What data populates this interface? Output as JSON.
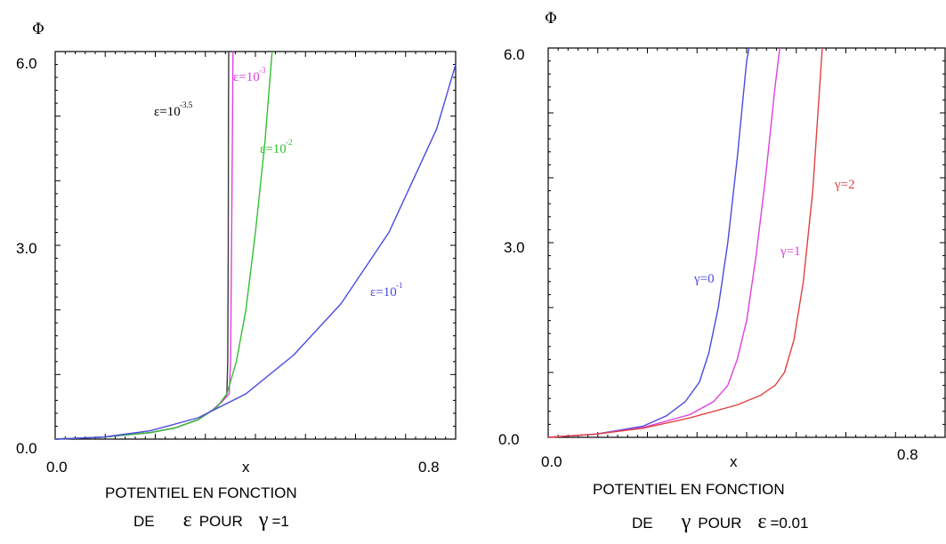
{
  "chart_data": [
    {
      "type": "line",
      "y_axis_title": "Φ",
      "xlabel": "x",
      "xlim": [
        0.0,
        0.84
      ],
      "ylim": [
        0.0,
        6.0
      ],
      "x_tick_labels": [
        "0.0",
        "0.8"
      ],
      "y_tick_labels": [
        "0.0",
        "3.0",
        "6.0"
      ],
      "grid": false,
      "caption_line1": "POTENTIEL EN FONCTION",
      "caption_line2": {
        "prefix": "DE",
        "symbol": "ε",
        "middle": "POUR",
        "symbol2": "γ",
        "suffix": "=1"
      },
      "series": [
        {
          "label": "ε=10",
          "exponent": "-3.5",
          "color": "#3a3a3a",
          "x": [
            0.0,
            0.1,
            0.2,
            0.25,
            0.3,
            0.33,
            0.35,
            0.36,
            0.362,
            0.363,
            0.3635,
            0.364
          ],
          "y": [
            0.0,
            0.03,
            0.1,
            0.17,
            0.3,
            0.45,
            0.58,
            0.7,
            1.2,
            3.0,
            5.0,
            6.0
          ]
        },
        {
          "label": "ε=10",
          "exponent": "-3",
          "color": "#e040e0",
          "x": [
            0.0,
            0.1,
            0.2,
            0.25,
            0.3,
            0.33,
            0.35,
            0.365,
            0.368,
            0.37,
            0.372,
            0.373
          ],
          "y": [
            0.0,
            0.03,
            0.1,
            0.17,
            0.3,
            0.45,
            0.58,
            0.7,
            1.2,
            3.0,
            5.0,
            6.0
          ]
        },
        {
          "label": "ε=10",
          "exponent": "-2",
          "color": "#30c030",
          "x": [
            0.0,
            0.1,
            0.2,
            0.25,
            0.3,
            0.34,
            0.36,
            0.38,
            0.4,
            0.42,
            0.44,
            0.455
          ],
          "y": [
            0.0,
            0.03,
            0.1,
            0.17,
            0.3,
            0.5,
            0.7,
            1.2,
            2.0,
            3.2,
            4.6,
            6.0
          ]
        },
        {
          "label": "ε=10",
          "exponent": "-1",
          "color": "#4a4ae0",
          "x": [
            0.0,
            0.1,
            0.2,
            0.3,
            0.4,
            0.5,
            0.6,
            0.7,
            0.8,
            0.84
          ],
          "y": [
            0.0,
            0.03,
            0.13,
            0.33,
            0.7,
            1.3,
            2.1,
            3.2,
            4.8,
            5.8
          ]
        }
      ]
    },
    {
      "type": "line",
      "y_axis_title": "Φ",
      "xlabel": "x",
      "xlim": [
        0.0,
        0.84
      ],
      "ylim": [
        0.0,
        6.0
      ],
      "x_tick_labels": [
        "0.0",
        "0.8"
      ],
      "y_tick_labels": [
        "0.0",
        "3.0",
        "6.0"
      ],
      "grid": false,
      "caption_line1": "POTENTIEL EN FONCTION",
      "caption_line2": {
        "prefix": "DE",
        "symbol": "γ",
        "middle": "POUR",
        "symbol2": "ε",
        "suffix": "=0.01"
      },
      "series": [
        {
          "label": "γ=0",
          "color": "#4a4ae0",
          "x": [
            0.0,
            0.1,
            0.2,
            0.25,
            0.29,
            0.32,
            0.34,
            0.36,
            0.38,
            0.4,
            0.42,
            0.425
          ],
          "y": [
            0.0,
            0.05,
            0.17,
            0.33,
            0.55,
            0.85,
            1.3,
            2.0,
            3.0,
            4.3,
            5.8,
            6.0
          ]
        },
        {
          "label": "γ=1",
          "color": "#e040e0",
          "x": [
            0.0,
            0.1,
            0.2,
            0.3,
            0.35,
            0.38,
            0.4,
            0.42,
            0.44,
            0.46,
            0.48,
            0.49
          ],
          "y": [
            0.0,
            0.05,
            0.15,
            0.35,
            0.55,
            0.8,
            1.2,
            1.8,
            2.8,
            4.0,
            5.4,
            6.0
          ]
        },
        {
          "label": "γ=2",
          "color": "#e04040",
          "x": [
            0.0,
            0.1,
            0.2,
            0.3,
            0.4,
            0.45,
            0.48,
            0.5,
            0.52,
            0.54,
            0.56,
            0.57,
            0.58
          ],
          "y": [
            0.0,
            0.05,
            0.14,
            0.3,
            0.5,
            0.65,
            0.8,
            1.0,
            1.5,
            2.4,
            3.8,
            4.9,
            6.0
          ]
        }
      ]
    }
  ]
}
